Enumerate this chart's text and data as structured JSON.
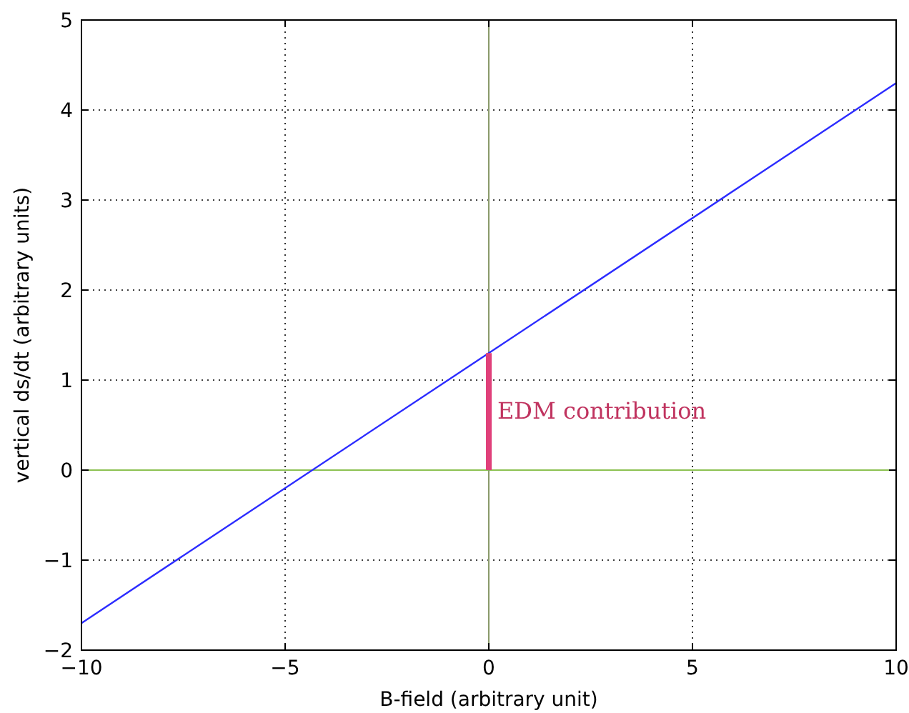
{
  "chart_data": {
    "type": "line",
    "xlabel": "B-field (arbitrary unit)",
    "ylabel": "vertical ds/dt (arbitrary units)",
    "xlim": [
      -10,
      10
    ],
    "ylim": [
      -2,
      5
    ],
    "xticks": [
      {
        "value": -10,
        "label": "−10"
      },
      {
        "value": -5,
        "label": "−5"
      },
      0,
      5,
      10
    ],
    "yticks": [
      {
        "value": -2,
        "label": "−2"
      },
      {
        "value": -1,
        "label": "−1"
      },
      0,
      1,
      2,
      3,
      4,
      5
    ],
    "grid": true,
    "line_style": "solid",
    "ref_lines": [
      {
        "axis": "y",
        "value": 0,
        "color": "#8cc152"
      },
      {
        "axis": "x",
        "value": 0,
        "color": "#8a9a6a"
      }
    ],
    "series": [
      {
        "color": "#2b2bff",
        "x": [
          -10,
          10
        ],
        "values": [
          -1.7,
          4.3
        ]
      },
      {
        "name": "EDM contribution",
        "color": "#e0407a",
        "x": [
          0,
          0
        ],
        "values": [
          0,
          1.3
        ]
      }
    ]
  }
}
